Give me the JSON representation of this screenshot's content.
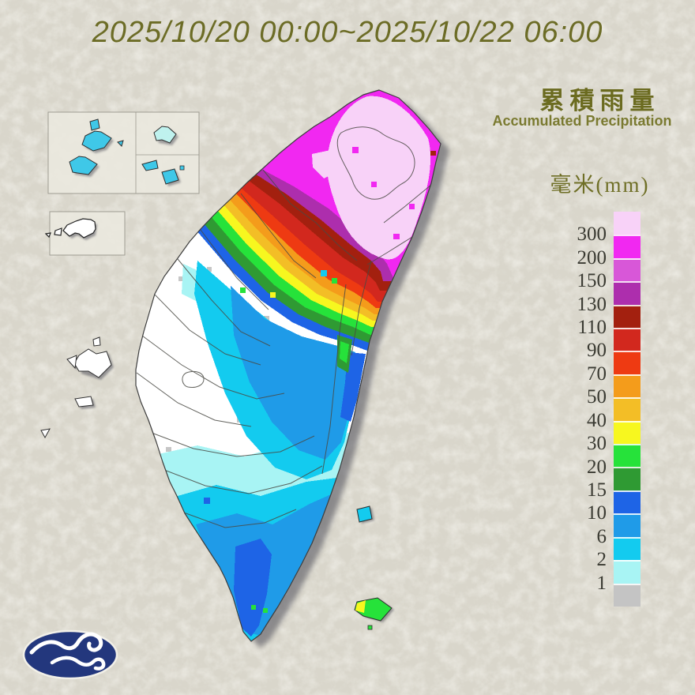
{
  "title": "2025/10/20 00:00~2025/10/22 06:00",
  "legend": {
    "title_zh": "累積雨量",
    "title_en": "Accumulated Precipitation",
    "unit": "毫米(mm)",
    "ticks": [
      "300",
      "200",
      "150",
      "130",
      "110",
      "90",
      "70",
      "50",
      "40",
      "30",
      "20",
      "15",
      "10",
      "6",
      "2",
      "1"
    ],
    "colors": [
      "#F8D2F8",
      "#F128F1",
      "#D857D8",
      "#AD2EAD",
      "#A3200F",
      "#D2281E",
      "#EE3A12",
      "#F49C1B",
      "#F3BE26",
      "#F7F71F",
      "#26E23A",
      "#2F9A33",
      "#1E64E6",
      "#1F9BE8",
      "#13CBEF",
      "#A8F4F4",
      "#C4C4C4"
    ]
  },
  "chart_data": {
    "type": "heatmap",
    "title": "2025/10/20 00:00~2025/10/22 06:00",
    "legend_title": "累積雨量 / Accumulated Precipitation",
    "unit": "mm",
    "scale_thresholds_mm": [
      300,
      200,
      150,
      130,
      110,
      90,
      70,
      50,
      40,
      30,
      20,
      15,
      10,
      6,
      2,
      1
    ],
    "scale_colors_high_to_low": [
      "#F8D2F8",
      "#F128F1",
      "#D857D8",
      "#AD2EAD",
      "#A3200F",
      "#D2281E",
      "#EE3A12",
      "#F49C1B",
      "#F3BE26",
      "#F7F71F",
      "#26E23A",
      "#2F9A33",
      "#1E64E6",
      "#1F9BE8",
      "#13CBEF",
      "#A8F4F4",
      "#C4C4C4"
    ],
    "regions": [
      {
        "area": "north-taiwan-taipei-yilan",
        "value_mm": ">300"
      },
      {
        "area": "north-taiwan-ring",
        "value_mm": "200-300"
      },
      {
        "area": "northwest-slope-bands",
        "value_mm": "20-200"
      },
      {
        "area": "central-east-coast",
        "value_mm": "6-20"
      },
      {
        "area": "central-west-plain",
        "value_mm": "<1"
      },
      {
        "area": "south-taiwan",
        "value_mm": "2-15"
      },
      {
        "area": "hengchun-peninsula",
        "value_mm": "10-20"
      },
      {
        "area": "matsu-kinmen-inset",
        "value_mm": "2-6"
      },
      {
        "area": "penghu-inset",
        "value_mm": "<1"
      },
      {
        "area": "green-island",
        "value_mm": "2-6"
      },
      {
        "area": "orchid-island",
        "value_mm": "20-40"
      }
    ]
  },
  "logo": {
    "name": "central-weather-administration",
    "bg_color": "#23377D"
  }
}
